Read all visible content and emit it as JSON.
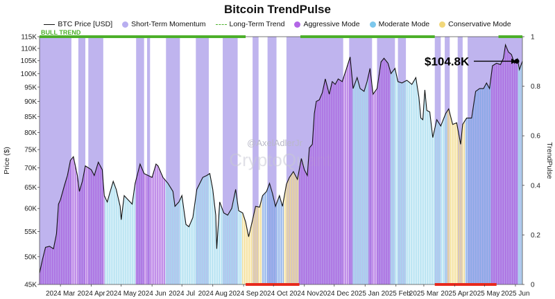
{
  "chart_data": {
    "type": "bar",
    "title": "Bitcoin TrendPulse",
    "ylabel": "Price ($)",
    "y2label": "TrendPulse",
    "legend": [
      {
        "label": "BTC Price [USD]",
        "kind": "line",
        "color": "#111111"
      },
      {
        "label": "Short-Term Momentum",
        "kind": "dot",
        "color": "#b8aef0"
      },
      {
        "label": "Long-Term Trend",
        "kind": "trend",
        "color": "#4caf2a"
      },
      {
        "label": "Aggressive Mode",
        "kind": "dot",
        "color": "#b366e6"
      },
      {
        "label": "Moderate Mode",
        "kind": "dot",
        "color": "#7cc7ec"
      },
      {
        "label": "Conservative Mode",
        "kind": "dot",
        "color": "#f1d77a"
      }
    ],
    "colors": {
      "momentum": "#a99be8",
      "aggressive": "#a963e0",
      "moderate": "#a5dcef",
      "moderate_blue": "#7fa7e6",
      "conservative": "#f3dc8c",
      "bull": "#4caf2a",
      "bear": "#e8291c",
      "price": "#111111"
    },
    "y_ticks": [
      {
        "label": "45K",
        "v": 45000
      },
      {
        "label": "50K",
        "v": 50000
      },
      {
        "label": "55K",
        "v": 55000
      },
      {
        "label": "60K",
        "v": 60000
      },
      {
        "label": "65K",
        "v": 65000
      },
      {
        "label": "70K",
        "v": 70000
      },
      {
        "label": "75K",
        "v": 75000
      },
      {
        "label": "80K",
        "v": 80000
      },
      {
        "label": "85K",
        "v": 85000
      },
      {
        "label": "90K",
        "v": 90000
      },
      {
        "label": "95K",
        "v": 95000
      },
      {
        "label": "100K",
        "v": 100000
      },
      {
        "label": "105K",
        "v": 105000
      },
      {
        "label": "110K",
        "v": 110000
      },
      {
        "label": "115K",
        "v": 115000
      }
    ],
    "y_range": [
      45000,
      115000
    ],
    "y_scale": "log",
    "y2_ticks": [
      "0",
      "0.2",
      "0.4",
      "0.6",
      "0.8",
      "1"
    ],
    "y2_range": [
      0,
      1
    ],
    "x_ticks": [
      "2024 Mar",
      "2024 Apr",
      "2024 May",
      "2024 Jun",
      "2024 Jul",
      "2024 Aug",
      "2024 Sep",
      "2024 Oct",
      "2024 Nov",
      "2024 Dec",
      "2025 Jan",
      "2025 Feb",
      "2025 Mar",
      "2025 Apr",
      "2025 May",
      "2025 Jun"
    ],
    "x_range": [
      "2024-02-09",
      "2025-06-08"
    ],
    "price_series": {
      "name": "BTC Price [USD]",
      "points": [
        [
          "2024-02-09",
          47000
        ],
        [
          "2024-02-12",
          49500
        ],
        [
          "2024-02-15",
          51800
        ],
        [
          "2024-02-19",
          52000
        ],
        [
          "2024-02-23",
          51500
        ],
        [
          "2024-02-26",
          54500
        ],
        [
          "2024-02-28",
          61000
        ],
        [
          "2024-03-01",
          62000
        ],
        [
          "2024-03-05",
          65500
        ],
        [
          "2024-03-08",
          68000
        ],
        [
          "2024-03-11",
          72000
        ],
        [
          "2024-03-14",
          73000
        ],
        [
          "2024-03-18",
          68000
        ],
        [
          "2024-03-20",
          64000
        ],
        [
          "2024-03-23",
          66500
        ],
        [
          "2024-03-26",
          70500
        ],
        [
          "2024-03-29",
          70000
        ],
        [
          "2024-04-01",
          69500
        ],
        [
          "2024-04-04",
          68000
        ],
        [
          "2024-04-08",
          71500
        ],
        [
          "2024-04-12",
          69500
        ],
        [
          "2024-04-14",
          63000
        ],
        [
          "2024-04-17",
          61500
        ],
        [
          "2024-04-20",
          64000
        ],
        [
          "2024-04-23",
          66500
        ],
        [
          "2024-04-26",
          64500
        ],
        [
          "2024-04-30",
          60500
        ],
        [
          "2024-05-01",
          57500
        ],
        [
          "2024-05-04",
          63000
        ],
        [
          "2024-05-08",
          62000
        ],
        [
          "2024-05-12",
          61000
        ],
        [
          "2024-05-15",
          66000
        ],
        [
          "2024-05-20",
          71000
        ],
        [
          "2024-05-24",
          68500
        ],
        [
          "2024-05-28",
          68000
        ],
        [
          "2024-06-01",
          67500
        ],
        [
          "2024-06-05",
          71000
        ],
        [
          "2024-06-07",
          70500
        ],
        [
          "2024-06-12",
          67500
        ],
        [
          "2024-06-17",
          66000
        ],
        [
          "2024-06-22",
          64000
        ],
        [
          "2024-06-24",
          60500
        ],
        [
          "2024-06-28",
          61500
        ],
        [
          "2024-07-01",
          63000
        ],
        [
          "2024-07-05",
          56500
        ],
        [
          "2024-07-08",
          56000
        ],
        [
          "2024-07-12",
          58000
        ],
        [
          "2024-07-16",
          64500
        ],
        [
          "2024-07-22",
          67500
        ],
        [
          "2024-07-26",
          68000
        ],
        [
          "2024-07-29",
          68500
        ],
        [
          "2024-08-01",
          64500
        ],
        [
          "2024-08-04",
          58500
        ],
        [
          "2024-08-05",
          51500
        ],
        [
          "2024-08-08",
          61500
        ],
        [
          "2024-08-12",
          59000
        ],
        [
          "2024-08-16",
          58500
        ],
        [
          "2024-08-20",
          60000
        ],
        [
          "2024-08-24",
          64500
        ],
        [
          "2024-08-27",
          59500
        ],
        [
          "2024-08-31",
          59000
        ],
        [
          "2024-09-03",
          57000
        ],
        [
          "2024-09-06",
          53900
        ],
        [
          "2024-09-10",
          57500
        ],
        [
          "2024-09-13",
          60500
        ],
        [
          "2024-09-17",
          60300
        ],
        [
          "2024-09-20",
          63000
        ],
        [
          "2024-09-24",
          64000
        ],
        [
          "2024-09-27",
          66000
        ],
        [
          "2024-09-30",
          63500
        ],
        [
          "2024-10-03",
          60500
        ],
        [
          "2024-10-07",
          63000
        ],
        [
          "2024-10-10",
          60500
        ],
        [
          "2024-10-14",
          65800
        ],
        [
          "2024-10-17",
          67500
        ],
        [
          "2024-10-21",
          69000
        ],
        [
          "2024-10-25",
          67000
        ],
        [
          "2024-10-29",
          72500
        ],
        [
          "2024-11-01",
          69500
        ],
        [
          "2024-11-04",
          68000
        ],
        [
          "2024-11-06",
          75500
        ],
        [
          "2024-11-09",
          76500
        ],
        [
          "2024-11-11",
          86000
        ],
        [
          "2024-11-13",
          90000
        ],
        [
          "2024-11-16",
          90500
        ],
        [
          "2024-11-19",
          93000
        ],
        [
          "2024-11-22",
          98000
        ],
        [
          "2024-11-26",
          92500
        ],
        [
          "2024-11-29",
          97000
        ],
        [
          "2024-12-02",
          96000
        ],
        [
          "2024-12-05",
          98000
        ],
        [
          "2024-12-09",
          97000
        ],
        [
          "2024-12-13",
          101500
        ],
        [
          "2024-12-17",
          106500
        ],
        [
          "2024-12-20",
          94500
        ],
        [
          "2024-12-24",
          98500
        ],
        [
          "2024-12-27",
          94500
        ],
        [
          "2024-12-31",
          93500
        ],
        [
          "2025-01-03",
          97000
        ],
        [
          "2025-01-06",
          102000
        ],
        [
          "2025-01-09",
          92500
        ],
        [
          "2025-01-13",
          94500
        ],
        [
          "2025-01-17",
          104500
        ],
        [
          "2025-01-20",
          106000
        ],
        [
          "2025-01-24",
          104000
        ],
        [
          "2025-01-27",
          100000
        ],
        [
          "2025-01-31",
          102000
        ],
        [
          "2025-02-03",
          97000
        ],
        [
          "2025-02-07",
          96500
        ],
        [
          "2025-02-12",
          97500
        ],
        [
          "2025-02-17",
          96000
        ],
        [
          "2025-02-21",
          98500
        ],
        [
          "2025-02-24",
          91500
        ],
        [
          "2025-02-26",
          84500
        ],
        [
          "2025-02-28",
          84000
        ],
        [
          "2025-03-02",
          94000
        ],
        [
          "2025-03-04",
          87000
        ],
        [
          "2025-03-07",
          86500
        ],
        [
          "2025-03-10",
          78500
        ],
        [
          "2025-03-14",
          84000
        ],
        [
          "2025-03-18",
          82000
        ],
        [
          "2025-03-23",
          86000
        ],
        [
          "2025-03-26",
          87500
        ],
        [
          "2025-03-30",
          82500
        ],
        [
          "2025-04-03",
          83000
        ],
        [
          "2025-04-07",
          76500
        ],
        [
          "2025-04-09",
          82500
        ],
        [
          "2025-04-13",
          84500
        ],
        [
          "2025-04-18",
          84500
        ],
        [
          "2025-04-22",
          93500
        ],
        [
          "2025-04-26",
          94500
        ],
        [
          "2025-04-30",
          94500
        ],
        [
          "2025-05-03",
          96500
        ],
        [
          "2025-05-06",
          94500
        ],
        [
          "2025-05-09",
          103000
        ],
        [
          "2025-05-13",
          104000
        ],
        [
          "2025-05-17",
          103500
        ],
        [
          "2025-05-20",
          106000
        ],
        [
          "2025-05-22",
          111500
        ],
        [
          "2025-05-25",
          108500
        ],
        [
          "2025-05-28",
          107500
        ],
        [
          "2025-05-31",
          104000
        ],
        [
          "2025-06-03",
          105800
        ],
        [
          "2025-06-05",
          101500
        ],
        [
          "2025-06-08",
          104800
        ]
      ]
    },
    "momentum_spans": [
      [
        "2024-02-09",
        "2024-03-12"
      ],
      [
        "2024-03-19",
        "2024-03-26"
      ],
      [
        "2024-03-29",
        "2024-04-13"
      ],
      [
        "2024-05-16",
        "2024-05-24"
      ],
      [
        "2024-05-27",
        "2024-05-30"
      ],
      [
        "2024-06-15",
        "2024-06-29"
      ],
      [
        "2024-07-15",
        "2024-07-28"
      ],
      [
        "2024-08-11",
        "2024-08-26"
      ],
      [
        "2024-09-10",
        "2024-09-16"
      ],
      [
        "2024-09-25",
        "2024-10-04"
      ],
      [
        "2024-10-14",
        "2024-12-10"
      ],
      [
        "2024-12-16",
        "2025-01-08"
      ],
      [
        "2025-01-13",
        "2025-01-31"
      ],
      [
        "2025-02-03",
        "2025-02-11"
      ],
      [
        "2025-03-12",
        "2025-03-18"
      ],
      [
        "2025-03-22",
        "2025-03-27"
      ],
      [
        "2025-04-04",
        "2025-04-09"
      ],
      [
        "2025-04-14",
        "2025-06-08"
      ]
    ],
    "mode_segments": [
      [
        "2024-02-09",
        "2024-03-30",
        "aggressive"
      ],
      [
        "2024-03-30",
        "2024-04-15",
        "aggressive"
      ],
      [
        "2024-04-15",
        "2024-05-16",
        "moderate"
      ],
      [
        "2024-05-16",
        "2024-06-15",
        "aggressive"
      ],
      [
        "2024-06-15",
        "2024-08-31",
        "moderate"
      ],
      [
        "2024-08-31",
        "2024-09-20",
        "conservative"
      ],
      [
        "2024-09-20",
        "2024-10-12",
        "moderate_blue"
      ],
      [
        "2024-10-12",
        "2024-10-27",
        "conservative"
      ],
      [
        "2024-10-27",
        "2024-12-20",
        "aggressive"
      ],
      [
        "2024-12-20",
        "2025-01-05",
        "moderate"
      ],
      [
        "2025-01-05",
        "2025-01-27",
        "aggressive"
      ],
      [
        "2025-01-27",
        "2025-02-25",
        "moderate"
      ],
      [
        "2025-02-25",
        "2025-03-25",
        "moderate"
      ],
      [
        "2025-03-25",
        "2025-04-12",
        "conservative"
      ],
      [
        "2025-04-12",
        "2025-05-08",
        "moderate_blue"
      ],
      [
        "2025-05-08",
        "2025-06-04",
        "aggressive"
      ],
      [
        "2025-06-04",
        "2025-06-08",
        "moderate"
      ]
    ],
    "bull_trend_spans": [
      [
        "2024-02-09",
        "2024-09-03"
      ],
      [
        "2024-10-28",
        "2025-03-12"
      ],
      [
        "2025-05-15",
        "2025-06-08"
      ]
    ],
    "bear_trend_spans": [
      [
        "2024-09-03",
        "2024-10-27"
      ],
      [
        "2025-03-12",
        "2025-05-13"
      ]
    ],
    "bull_label": "BULL TREND",
    "annotation": {
      "text": "$104.8K",
      "date": "2025-06-08",
      "value": 104800
    },
    "watermark": {
      "handle": "@AxelAdlerJr",
      "brand": "CryptoQuant"
    }
  }
}
